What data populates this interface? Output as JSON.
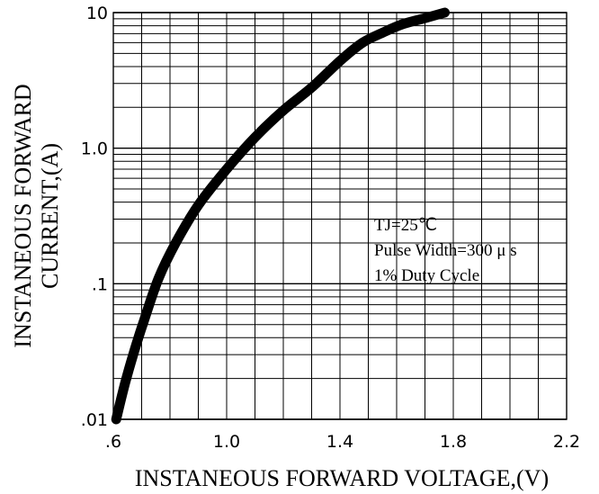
{
  "chart_data": {
    "type": "line",
    "xlabel": "INSTANEOUS FORWARD VOLTAGE,(V)",
    "ylabel_line1": "INSTANEOUS FORWARD",
    "ylabel_line2": "CURRENT,(A)",
    "xlim": [
      0.6,
      2.2
    ],
    "ylim": [
      0.01,
      10
    ],
    "yscale": "log",
    "grid": true,
    "x_ticks": [
      0.6,
      1.0,
      1.4,
      1.8,
      2.2
    ],
    "x_tick_labels": [
      ".6",
      "1.0",
      "1.4",
      "1.8",
      "2.2"
    ],
    "y_ticks": [
      0.01,
      0.1,
      1,
      10
    ],
    "y_tick_labels": [
      ".01",
      ".1",
      "1.0",
      "10"
    ],
    "annotations": [
      "TJ=25℃",
      "Pulse Width=300 μ s",
      "1% Duty Cycle"
    ],
    "series": [
      {
        "color": "#000000",
        "x": [
          0.61,
          0.64,
          0.67,
          0.71,
          0.76,
          0.82,
          0.9,
          1.0,
          1.1,
          1.2,
          1.3,
          1.4,
          1.48,
          1.55,
          1.62,
          1.7,
          1.77
        ],
        "y": [
          0.01,
          0.018,
          0.03,
          0.055,
          0.11,
          0.2,
          0.38,
          0.7,
          1.2,
          1.9,
          2.8,
          4.4,
          6.0,
          7.1,
          8.2,
          9.1,
          10.0
        ]
      }
    ]
  }
}
